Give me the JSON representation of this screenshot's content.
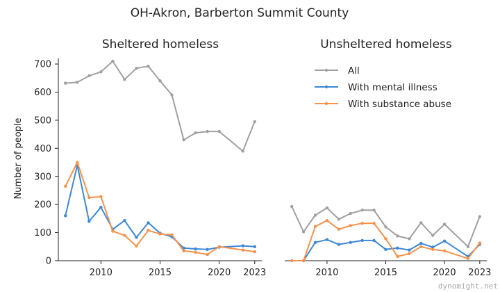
{
  "title": "OH-Akron, Barberton Summit County",
  "watermark": "dynomight.net",
  "colors": {
    "All": "#a0a0a0",
    "With mental illness": "#3d87d6",
    "With substance abuse": "#f5924c"
  },
  "chart_data": [
    {
      "type": "line",
      "title": "Sheltered homeless",
      "ylabel": "Number of people",
      "xlabel": "",
      "xlim": [
        2006.4,
        2023.6
      ],
      "ylim": [
        0,
        720
      ],
      "xticks": [
        2010,
        2015,
        2020,
        2023
      ],
      "yticks": [
        0,
        100,
        200,
        300,
        400,
        500,
        600,
        700
      ],
      "series": [
        {
          "name": "All",
          "x": [
            2007,
            2008,
            2009,
            2010,
            2011,
            2012,
            2013,
            2014,
            2015,
            2016,
            2017,
            2018,
            2019,
            2020,
            2022,
            2023
          ],
          "y": [
            632,
            635,
            658,
            672,
            710,
            645,
            685,
            692,
            640,
            590,
            430,
            455,
            460,
            460,
            390,
            495
          ]
        },
        {
          "name": "With mental illness",
          "x": [
            2007,
            2008,
            2009,
            2010,
            2011,
            2012,
            2013,
            2014,
            2015,
            2016,
            2017,
            2018,
            2019,
            2020,
            2022,
            2023
          ],
          "y": [
            160,
            340,
            140,
            190,
            112,
            143,
            83,
            135,
            98,
            85,
            45,
            42,
            40,
            48,
            53,
            50
          ]
        },
        {
          "name": "With substance abuse",
          "x": [
            2007,
            2008,
            2009,
            2010,
            2011,
            2012,
            2013,
            2014,
            2015,
            2016,
            2017,
            2018,
            2019,
            2020,
            2022,
            2023
          ],
          "y": [
            265,
            350,
            225,
            228,
            105,
            90,
            52,
            108,
            95,
            92,
            35,
            30,
            22,
            50,
            38,
            32
          ]
        }
      ]
    },
    {
      "type": "line",
      "title": "Unsheltered homeless",
      "xlabel": "",
      "ylabel": "",
      "xlim": [
        2006.4,
        2023.6
      ],
      "ylim": [
        0,
        720
      ],
      "xticks": [
        2010,
        2015,
        2020,
        2023
      ],
      "yticks": [],
      "legend": "top-right",
      "series": [
        {
          "name": "All",
          "x": [
            2007,
            2008,
            2009,
            2010,
            2011,
            2012,
            2013,
            2014,
            2015,
            2016,
            2017,
            2018,
            2019,
            2020,
            2022,
            2023
          ],
          "y": [
            193,
            103,
            162,
            188,
            148,
            168,
            180,
            180,
            120,
            88,
            78,
            135,
            90,
            130,
            50,
            157
          ]
        },
        {
          "name": "With mental illness",
          "x": [
            2007,
            2008,
            2009,
            2010,
            2011,
            2012,
            2013,
            2014,
            2015,
            2016,
            2017,
            2018,
            2019,
            2020,
            2022,
            2023
          ],
          "y": [
            0,
            0,
            65,
            75,
            58,
            65,
            72,
            72,
            40,
            45,
            38,
            62,
            48,
            70,
            15,
            58
          ]
        },
        {
          "name": "With substance abuse",
          "x": [
            2007,
            2008,
            2009,
            2010,
            2011,
            2012,
            2013,
            2014,
            2015,
            2016,
            2017,
            2018,
            2019,
            2020,
            2022,
            2023
          ],
          "y": [
            0,
            0,
            122,
            143,
            112,
            125,
            133,
            133,
            78,
            15,
            25,
            50,
            40,
            35,
            8,
            63
          ]
        }
      ]
    }
  ]
}
